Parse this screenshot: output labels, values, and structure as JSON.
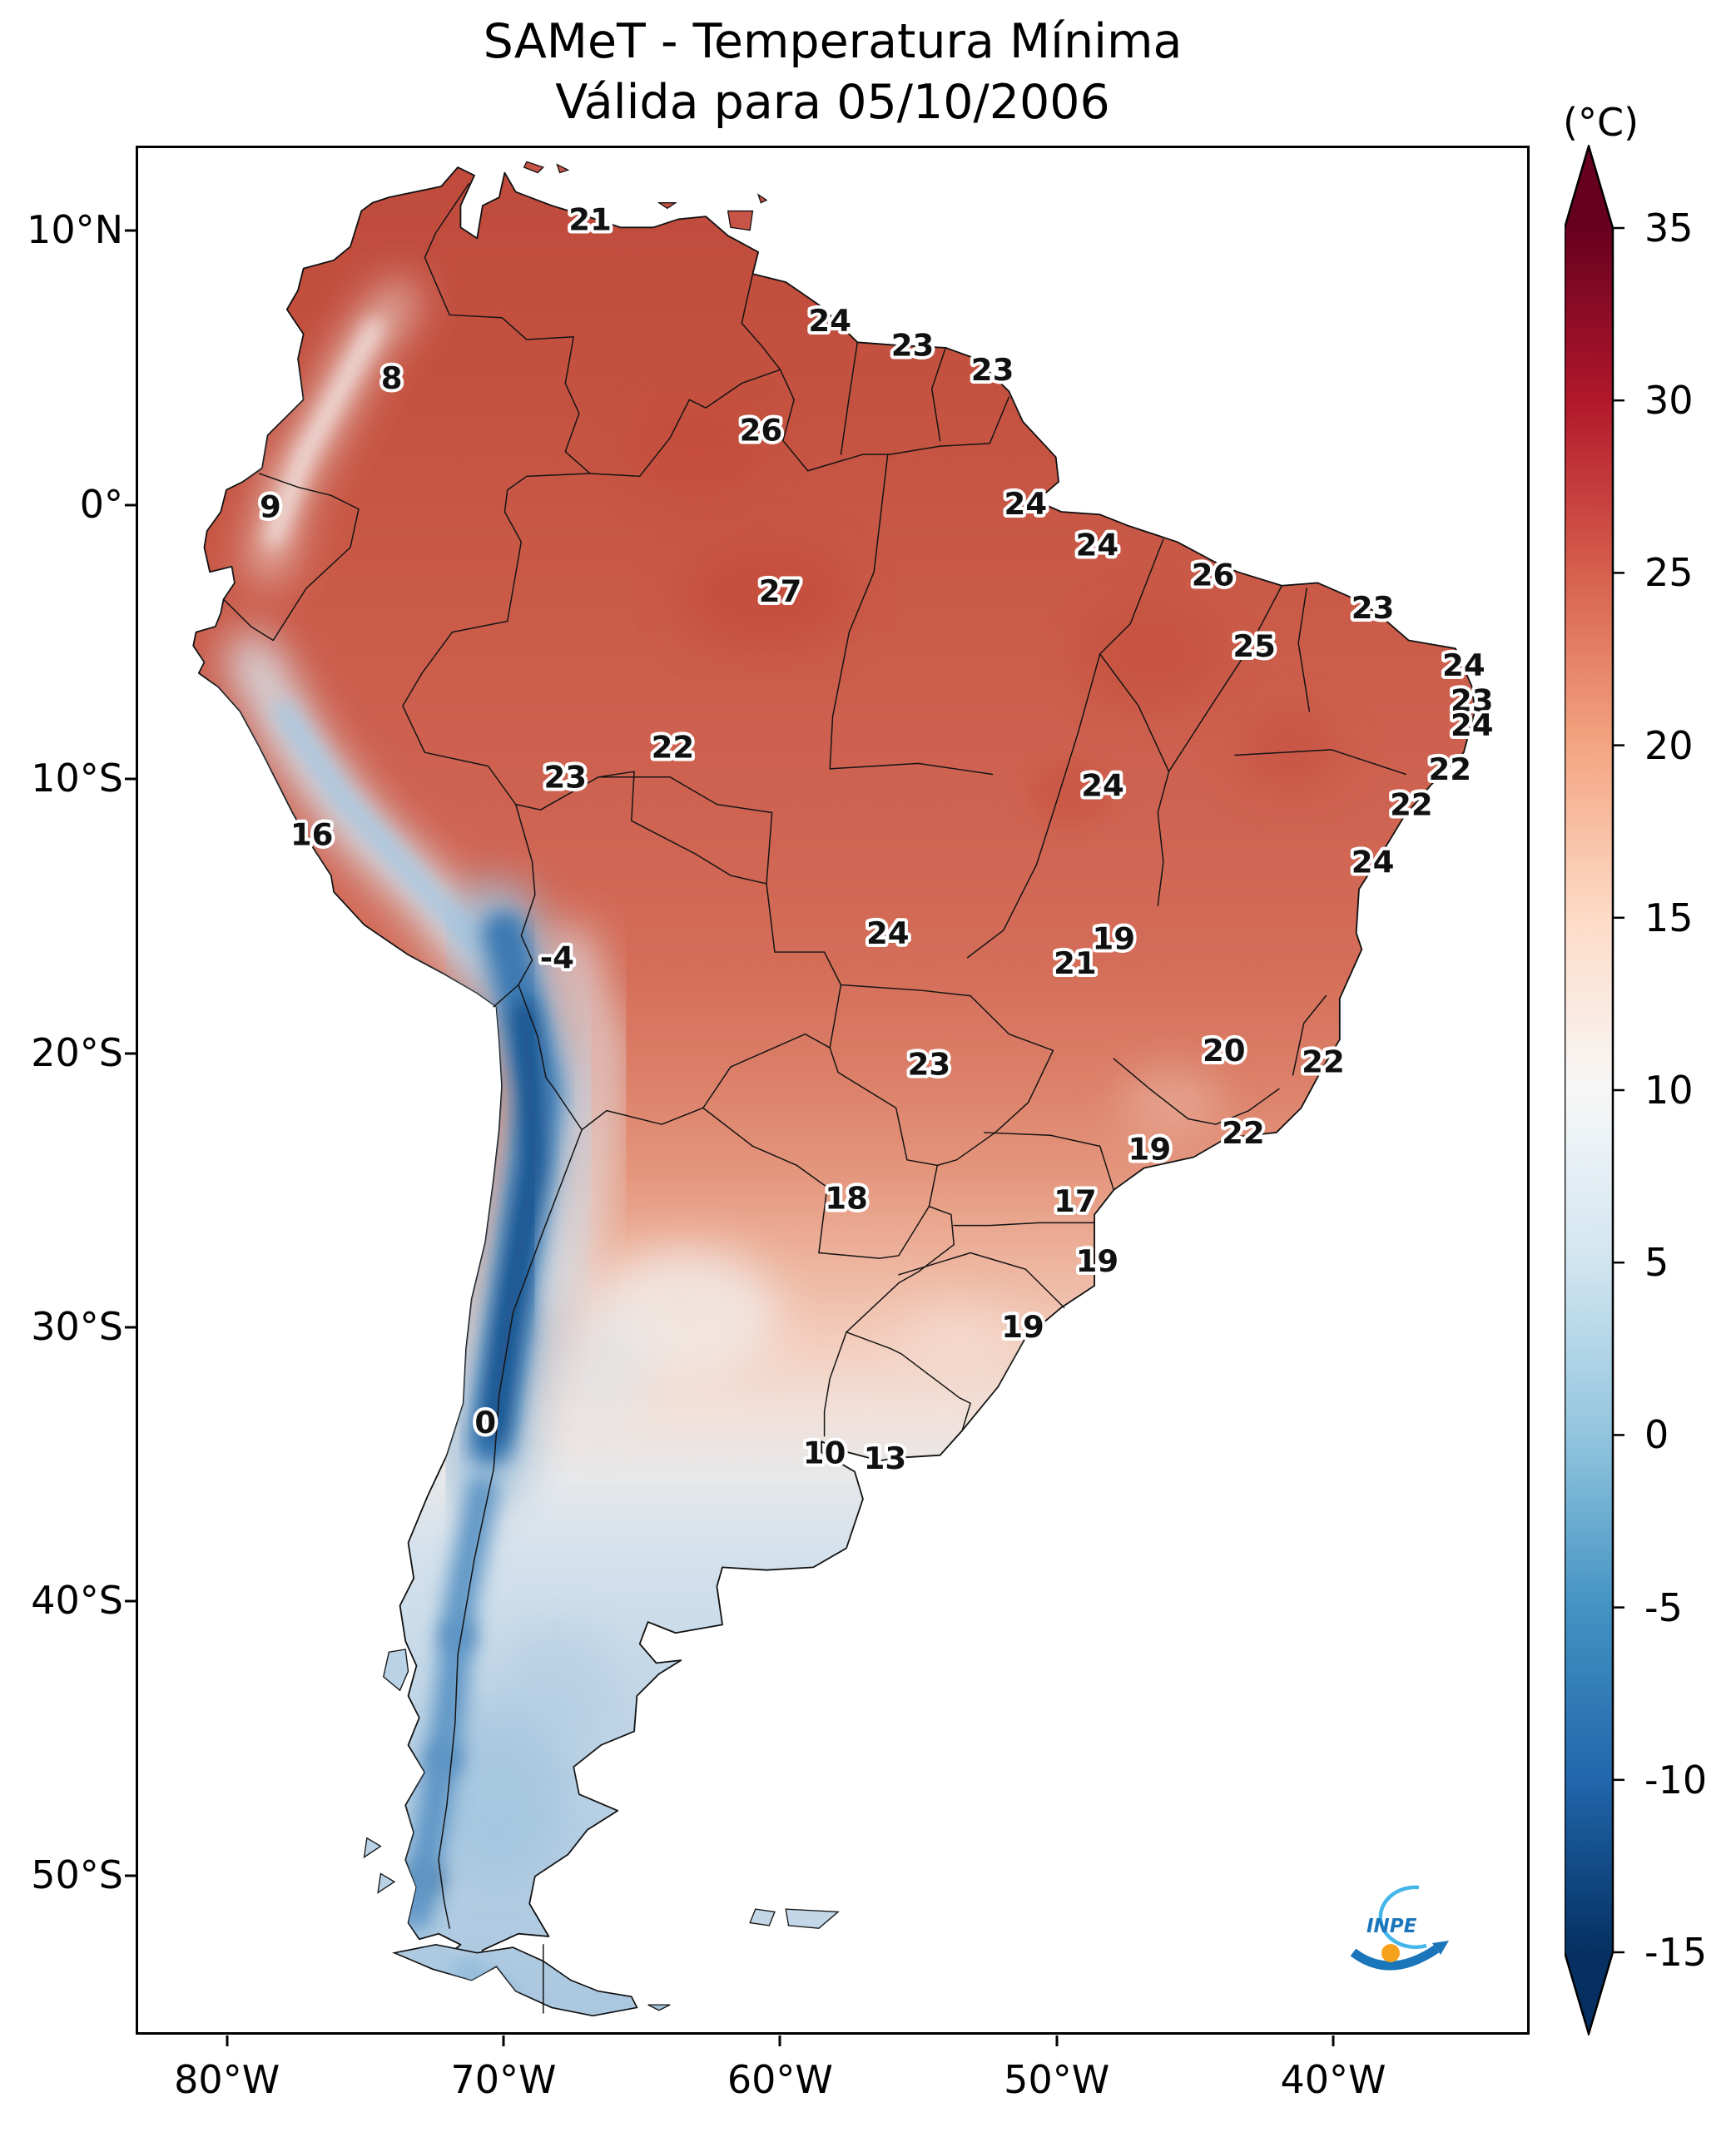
{
  "title": {
    "line1": "SAMeT - Temperatura Mínima",
    "line2": "Válida para 05/10/2006"
  },
  "colorbar": {
    "unit_label": "(°C)",
    "vmin": -15,
    "vmax": 35,
    "ticks": [
      35,
      30,
      25,
      20,
      15,
      10,
      5,
      0,
      -5,
      -10,
      -15
    ]
  },
  "axes": {
    "lat_range": {
      "top": 13.1,
      "bottom": -55.8
    },
    "lon_range": {
      "left": -83.3,
      "right": -32.9
    },
    "lat_ticks": [
      {
        "label": "10°N",
        "value": 10
      },
      {
        "label": "0°",
        "value": 0
      },
      {
        "label": "10°S",
        "value": -10
      },
      {
        "label": "20°S",
        "value": -20
      },
      {
        "label": "30°S",
        "value": -30
      },
      {
        "label": "40°S",
        "value": -40
      },
      {
        "label": "50°S",
        "value": -50
      }
    ],
    "lon_ticks": [
      {
        "label": "80°W",
        "value": -80
      },
      {
        "label": "70°W",
        "value": -70
      },
      {
        "label": "60°W",
        "value": -60
      },
      {
        "label": "50°W",
        "value": -50
      },
      {
        "label": "40°W",
        "value": -40
      }
    ]
  },
  "logo": {
    "label": "INPE"
  },
  "chart_data": {
    "type": "heatmap",
    "title": "SAMeT - Temperatura Mínima",
    "subtitle": "Válida para 05/10/2006",
    "units": "°C",
    "colormap": "RdBu_r",
    "value_range": [
      -15,
      35
    ],
    "colorbar_colors": [
      "#67001f",
      "#b2182b",
      "#d6604d",
      "#f4a582",
      "#fddbc7",
      "#f7f7f7",
      "#d1e5f0",
      "#92c5de",
      "#4393c3",
      "#2166ac",
      "#053061"
    ],
    "stations": [
      {
        "v": 21,
        "lon": -66.9,
        "lat": 10.5
      },
      {
        "v": 8,
        "lon": -74.1,
        "lat": 4.7
      },
      {
        "v": 24,
        "lon": -58.2,
        "lat": 6.8
      },
      {
        "v": 23,
        "lon": -55.2,
        "lat": 5.9
      },
      {
        "v": 23,
        "lon": -52.3,
        "lat": 5.0
      },
      {
        "v": 26,
        "lon": -60.7,
        "lat": 2.8
      },
      {
        "v": 9,
        "lon": -78.5,
        "lat": 0.0
      },
      {
        "v": 24,
        "lon": -51.1,
        "lat": 0.1
      },
      {
        "v": 24,
        "lon": -48.5,
        "lat": -1.4
      },
      {
        "v": 26,
        "lon": -44.3,
        "lat": -2.5
      },
      {
        "v": 27,
        "lon": -60.0,
        "lat": -3.1
      },
      {
        "v": 23,
        "lon": -38.5,
        "lat": -3.7
      },
      {
        "v": 25,
        "lon": -42.8,
        "lat": -5.1
      },
      {
        "v": 24,
        "lon": -35.2,
        "lat": -5.8
      },
      {
        "v": 23,
        "lon": -34.9,
        "lat": -7.1
      },
      {
        "v": 24,
        "lon": -34.9,
        "lat": -8.0
      },
      {
        "v": 22,
        "lon": -35.7,
        "lat": -9.6
      },
      {
        "v": 22,
        "lon": -37.1,
        "lat": -10.9
      },
      {
        "v": 24,
        "lon": -38.5,
        "lat": -13.0
      },
      {
        "v": 22,
        "lon": -63.9,
        "lat": -8.8
      },
      {
        "v": 23,
        "lon": -67.8,
        "lat": -9.9
      },
      {
        "v": 24,
        "lon": -48.3,
        "lat": -10.2
      },
      {
        "v": 16,
        "lon": -77.0,
        "lat": -12.0
      },
      {
        "v": -4,
        "lon": -68.1,
        "lat": -16.5
      },
      {
        "v": 24,
        "lon": -56.1,
        "lat": -15.6
      },
      {
        "v": 19,
        "lon": -47.9,
        "lat": -15.8
      },
      {
        "v": 21,
        "lon": -49.3,
        "lat": -16.7
      },
      {
        "v": 23,
        "lon": -54.6,
        "lat": -20.4
      },
      {
        "v": 20,
        "lon": -43.9,
        "lat": -19.9
      },
      {
        "v": 22,
        "lon": -40.3,
        "lat": -20.3
      },
      {
        "v": 19,
        "lon": -46.6,
        "lat": -23.5
      },
      {
        "v": 22,
        "lon": -43.2,
        "lat": -22.9
      },
      {
        "v": 18,
        "lon": -57.6,
        "lat": -25.3
      },
      {
        "v": 17,
        "lon": -49.3,
        "lat": -25.4
      },
      {
        "v": 19,
        "lon": -48.5,
        "lat": -27.6
      },
      {
        "v": 19,
        "lon": -51.2,
        "lat": -30.0
      },
      {
        "v": 0,
        "lon": -70.7,
        "lat": -33.5
      },
      {
        "v": 10,
        "lon": -58.4,
        "lat": -34.6
      },
      {
        "v": 13,
        "lon": -56.2,
        "lat": -34.8
      }
    ]
  }
}
